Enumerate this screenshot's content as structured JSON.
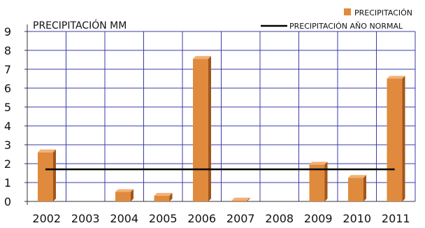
{
  "chart_data": {
    "type": "bar",
    "title": "PRECIPITACIÓN  MM",
    "categories": [
      "2002",
      "2003",
      "2004",
      "2005",
      "2006",
      "2007",
      "2008",
      "2009",
      "2010",
      "2011"
    ],
    "series": [
      {
        "name": "PRECIPITACIÓN",
        "type": "bar",
        "color": "#e08a3c",
        "values": [
          2.6,
          0,
          0.5,
          0.3,
          7.55,
          0.05,
          0,
          1.95,
          1.25,
          6.5
        ]
      },
      {
        "name": "PRECIPITACIÓN AÑO NORMAL",
        "type": "line",
        "color": "#000000",
        "values": [
          1.7,
          1.7,
          1.7,
          1.7,
          1.7,
          1.7,
          1.7,
          1.7,
          1.7,
          1.7
        ]
      }
    ],
    "ylim": [
      0,
      9
    ],
    "yticks": [
      "0",
      "1",
      "2",
      "3",
      "4",
      "5",
      "6",
      "7",
      "8",
      "9"
    ],
    "grid": true,
    "legend_position": "top-right",
    "xlabel": "",
    "ylabel": ""
  }
}
